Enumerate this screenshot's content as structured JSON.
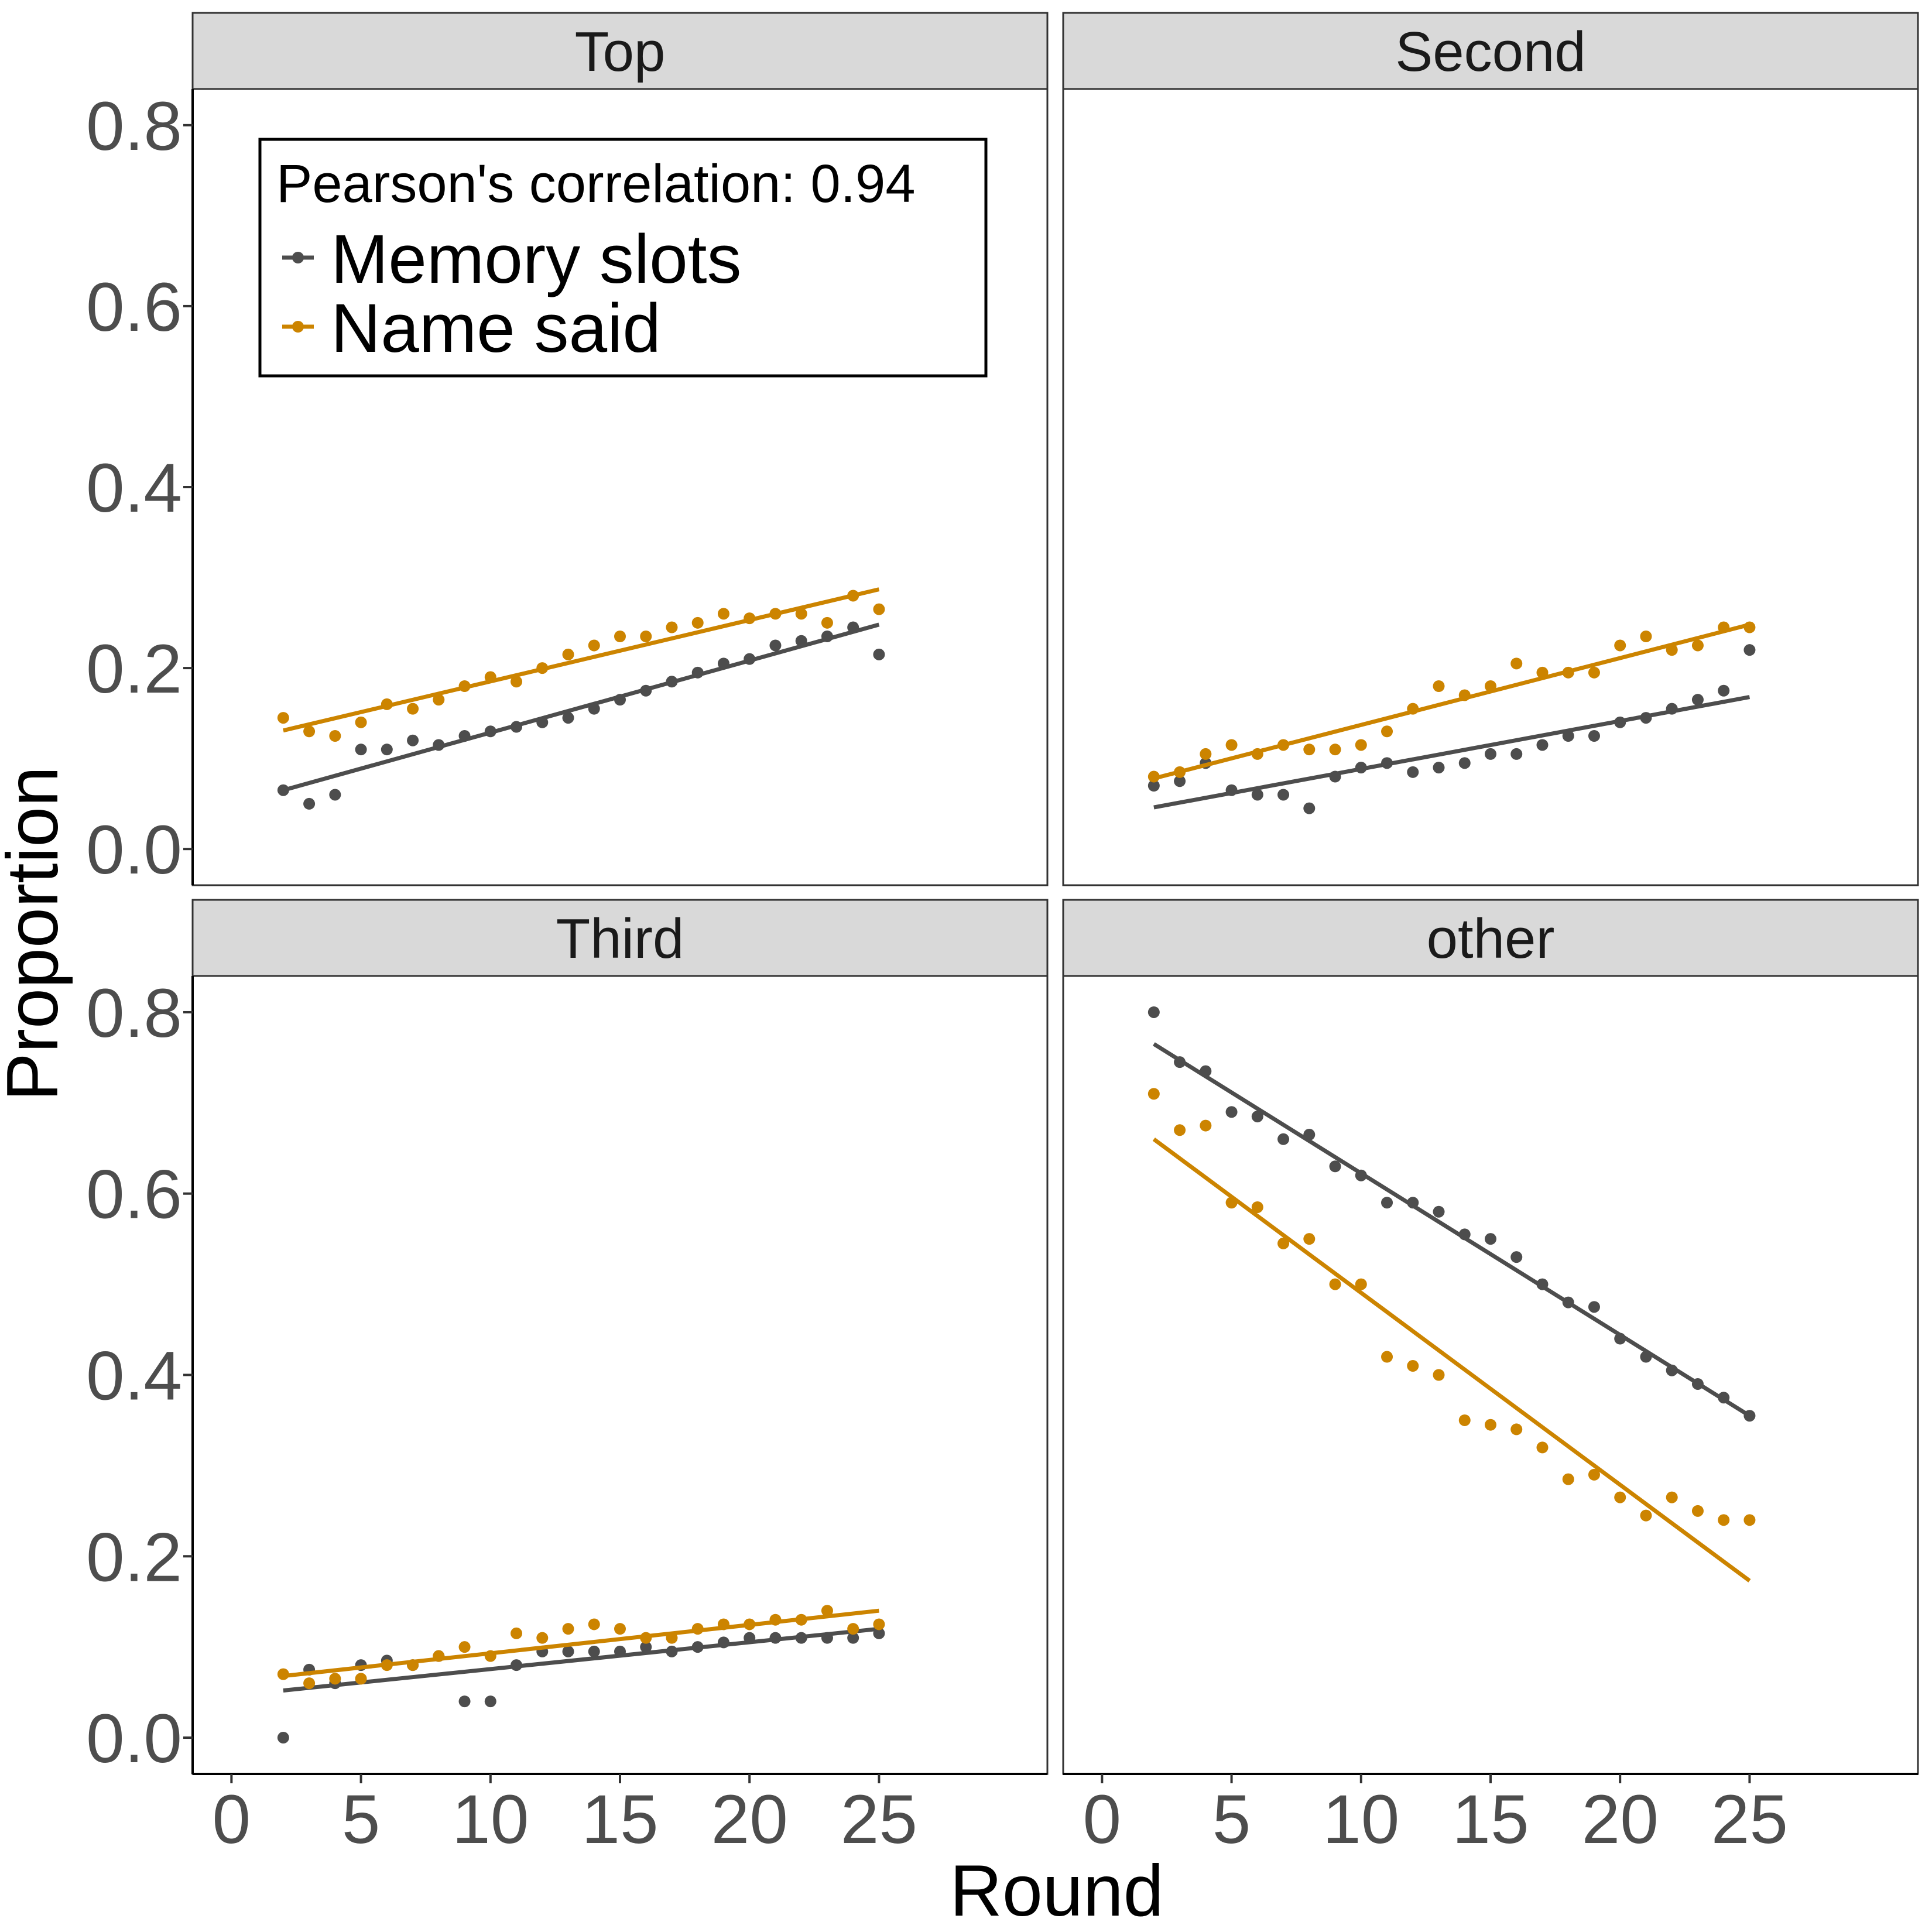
{
  "chart_data": {
    "type": "scatter",
    "xlabel": "Round",
    "ylabel": "Proportion",
    "xlim": [
      -1.5,
      31.5
    ],
    "ylim": [
      -0.04,
      0.84
    ],
    "x_ticks": [
      0,
      5,
      10,
      15,
      20,
      25
    ],
    "y_ticks": [
      0.0,
      0.2,
      0.4,
      0.6,
      0.8
    ],
    "legend": {
      "title": "Pearson's correlation: 0.94",
      "placement": "inside top-left of first panel",
      "entries": [
        {
          "label": "Memory slots",
          "color": "#4d4d4d"
        },
        {
          "label": "Name said",
          "color": "#cc8400"
        }
      ]
    },
    "series_colors": {
      "Memory slots": "#4d4d4d",
      "Name said": "#cc8400"
    },
    "panels": [
      {
        "title": "Top",
        "series": [
          {
            "name": "Memory slots",
            "x": [
              2,
              3,
              4,
              5,
              6,
              7,
              8,
              9,
              10,
              11,
              12,
              13,
              14,
              15,
              16,
              17,
              18,
              19,
              20,
              21,
              22,
              23,
              24,
              25
            ],
            "y": [
              0.065,
              0.05,
              0.06,
              0.11,
              0.11,
              0.12,
              0.115,
              0.125,
              0.13,
              0.135,
              0.14,
              0.145,
              0.155,
              0.165,
              0.175,
              0.185,
              0.195,
              0.205,
              0.21,
              0.225,
              0.23,
              0.235,
              0.245,
              0.215
            ],
            "fit": [
              [
                2,
                0.065
              ],
              [
                25,
                0.248
              ]
            ]
          },
          {
            "name": "Name said",
            "x": [
              2,
              3,
              4,
              5,
              6,
              7,
              8,
              9,
              10,
              11,
              12,
              13,
              14,
              15,
              16,
              17,
              18,
              19,
              20,
              21,
              22,
              23,
              24,
              25
            ],
            "y": [
              0.145,
              0.13,
              0.125,
              0.14,
              0.16,
              0.155,
              0.165,
              0.18,
              0.19,
              0.185,
              0.2,
              0.215,
              0.225,
              0.235,
              0.235,
              0.245,
              0.25,
              0.26,
              0.255,
              0.26,
              0.26,
              0.25,
              0.28,
              0.265
            ],
            "fit": [
              [
                2,
                0.131
              ],
              [
                25,
                0.287
              ]
            ]
          }
        ]
      },
      {
        "title": "Second",
        "series": [
          {
            "name": "Memory slots",
            "x": [
              2,
              3,
              4,
              5,
              6,
              7,
              8,
              9,
              10,
              11,
              12,
              13,
              14,
              15,
              16,
              17,
              18,
              19,
              20,
              21,
              22,
              23,
              24,
              25
            ],
            "y": [
              0.07,
              0.075,
              0.095,
              0.065,
              0.06,
              0.06,
              0.045,
              0.08,
              0.09,
              0.095,
              0.085,
              0.09,
              0.095,
              0.105,
              0.105,
              0.115,
              0.125,
              0.125,
              0.14,
              0.145,
              0.155,
              0.165,
              0.175,
              0.22
            ],
            "fit": [
              [
                2,
                0.046
              ],
              [
                25,
                0.168
              ]
            ]
          },
          {
            "name": "Name said",
            "x": [
              2,
              3,
              4,
              5,
              6,
              7,
              8,
              9,
              10,
              11,
              12,
              13,
              14,
              15,
              16,
              17,
              18,
              19,
              20,
              21,
              22,
              23,
              24,
              25
            ],
            "y": [
              0.08,
              0.085,
              0.105,
              0.115,
              0.105,
              0.115,
              0.11,
              0.11,
              0.115,
              0.13,
              0.155,
              0.18,
              0.17,
              0.18,
              0.205,
              0.195,
              0.195,
              0.195,
              0.225,
              0.235,
              0.22,
              0.225,
              0.245,
              0.245
            ],
            "fit": [
              [
                2,
                0.078
              ],
              [
                25,
                0.248
              ]
            ]
          }
        ]
      },
      {
        "title": "Third",
        "series": [
          {
            "name": "Memory slots",
            "x": [
              2,
              3,
              4,
              5,
              6,
              7,
              8,
              9,
              10,
              11,
              12,
              13,
              14,
              15,
              16,
              17,
              18,
              19,
              20,
              21,
              22,
              23,
              24,
              25
            ],
            "y": [
              0.0,
              0.075,
              0.06,
              0.08,
              0.085,
              0.08,
              0.09,
              0.04,
              0.04,
              0.08,
              0.095,
              0.095,
              0.095,
              0.095,
              0.1,
              0.095,
              0.1,
              0.105,
              0.11,
              0.11,
              0.11,
              0.11,
              0.11,
              0.115
            ],
            "fit": [
              [
                2,
                0.052
              ],
              [
                25,
                0.12
              ]
            ]
          },
          {
            "name": "Name said",
            "x": [
              2,
              3,
              4,
              5,
              6,
              7,
              8,
              9,
              10,
              11,
              12,
              13,
              14,
              15,
              16,
              17,
              18,
              19,
              20,
              21,
              22,
              23,
              24,
              25
            ],
            "y": [
              0.07,
              0.06,
              0.065,
              0.065,
              0.08,
              0.08,
              0.09,
              0.1,
              0.09,
              0.115,
              0.11,
              0.12,
              0.125,
              0.12,
              0.11,
              0.11,
              0.12,
              0.125,
              0.125,
              0.13,
              0.13,
              0.14,
              0.12,
              0.125
            ],
            "fit": [
              [
                2,
                0.068
              ],
              [
                25,
                0.14
              ]
            ]
          }
        ]
      },
      {
        "title": "other",
        "series": [
          {
            "name": "Memory slots",
            "x": [
              2,
              3,
              4,
              5,
              6,
              7,
              8,
              9,
              10,
              11,
              12,
              13,
              14,
              15,
              16,
              17,
              18,
              19,
              20,
              21,
              22,
              23,
              24,
              25
            ],
            "y": [
              0.8,
              0.745,
              0.735,
              0.69,
              0.685,
              0.66,
              0.665,
              0.63,
              0.62,
              0.59,
              0.59,
              0.58,
              0.555,
              0.55,
              0.53,
              0.5,
              0.48,
              0.475,
              0.44,
              0.42,
              0.405,
              0.39,
              0.375,
              0.355
            ],
            "fit": [
              [
                2,
                0.765
              ],
              [
                25,
                0.355
              ]
            ]
          },
          {
            "name": "Name said",
            "x": [
              2,
              3,
              4,
              5,
              6,
              7,
              8,
              9,
              10,
              11,
              12,
              13,
              14,
              15,
              16,
              17,
              18,
              19,
              20,
              21,
              22,
              23,
              24,
              25
            ],
            "y": [
              0.71,
              0.67,
              0.675,
              0.59,
              0.585,
              0.545,
              0.55,
              0.5,
              0.5,
              0.42,
              0.41,
              0.4,
              0.35,
              0.345,
              0.34,
              0.32,
              0.285,
              0.29,
              0.265,
              0.245,
              0.265,
              0.25,
              0.24,
              0.24
            ],
            "fit": [
              [
                2,
                0.66
              ],
              [
                25,
                0.173
              ]
            ]
          }
        ]
      }
    ]
  }
}
